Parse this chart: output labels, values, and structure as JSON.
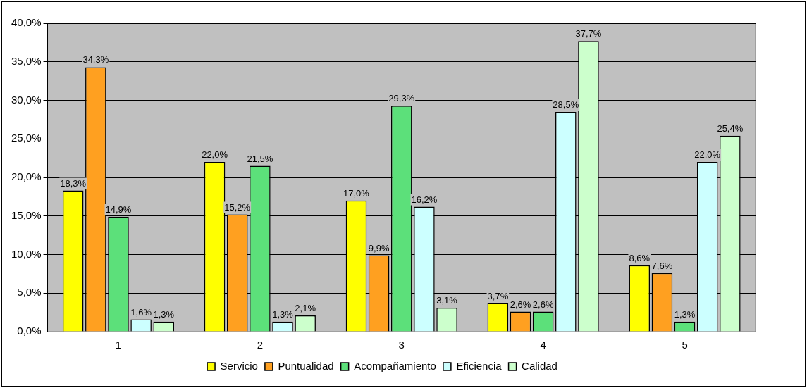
{
  "chart_data": {
    "type": "bar",
    "categories": [
      "1",
      "2",
      "3",
      "4",
      "5"
    ],
    "series": [
      {
        "name": "Servicio",
        "color": "#ffff00",
        "values": [
          18.3,
          22.0,
          17.0,
          3.7,
          8.6
        ],
        "value_labels": [
          "18,3%",
          "22,0%",
          "17,0%",
          "3,7%",
          "8,6%"
        ]
      },
      {
        "name": "Puntualidad",
        "color": "#ffa020",
        "values": [
          34.3,
          15.2,
          9.9,
          2.6,
          7.6
        ],
        "value_labels": [
          "34,3%",
          "15,2%",
          "9,9%",
          "2,6%",
          "7,6%"
        ]
      },
      {
        "name": "Acompañamiento",
        "color": "#5ce07a",
        "values": [
          14.9,
          21.5,
          29.3,
          2.6,
          1.3
        ],
        "value_labels": [
          "14,9%",
          "21,5%",
          "29,3%",
          "2,6%",
          "1,3%"
        ]
      },
      {
        "name": "Eficiencia",
        "color": "#ccffff",
        "values": [
          1.6,
          1.3,
          16.2,
          28.5,
          22.0
        ],
        "value_labels": [
          "1,6%",
          "1,3%",
          "16,2%",
          "28,5%",
          "22,0%"
        ]
      },
      {
        "name": "Calidad",
        "color": "#ccffcc",
        "values": [
          1.3,
          2.1,
          3.1,
          37.7,
          25.4
        ],
        "value_labels": [
          "1,3%",
          "2,1%",
          "3,1%",
          "37,7%",
          "25,4%"
        ]
      }
    ],
    "ylim": [
      0,
      40
    ],
    "yticks": [
      {
        "value": 0,
        "label": "0,0%"
      },
      {
        "value": 5,
        "label": "5,0%"
      },
      {
        "value": 10,
        "label": "10,0%"
      },
      {
        "value": 15,
        "label": "15,0%"
      },
      {
        "value": 20,
        "label": "20,0%"
      },
      {
        "value": 25,
        "label": "25,0%"
      },
      {
        "value": 30,
        "label": "30,0%"
      },
      {
        "value": 35,
        "label": "35,0%"
      },
      {
        "value": 40,
        "label": "40,0%"
      }
    ],
    "grid": "y",
    "legend": "bottom"
  }
}
